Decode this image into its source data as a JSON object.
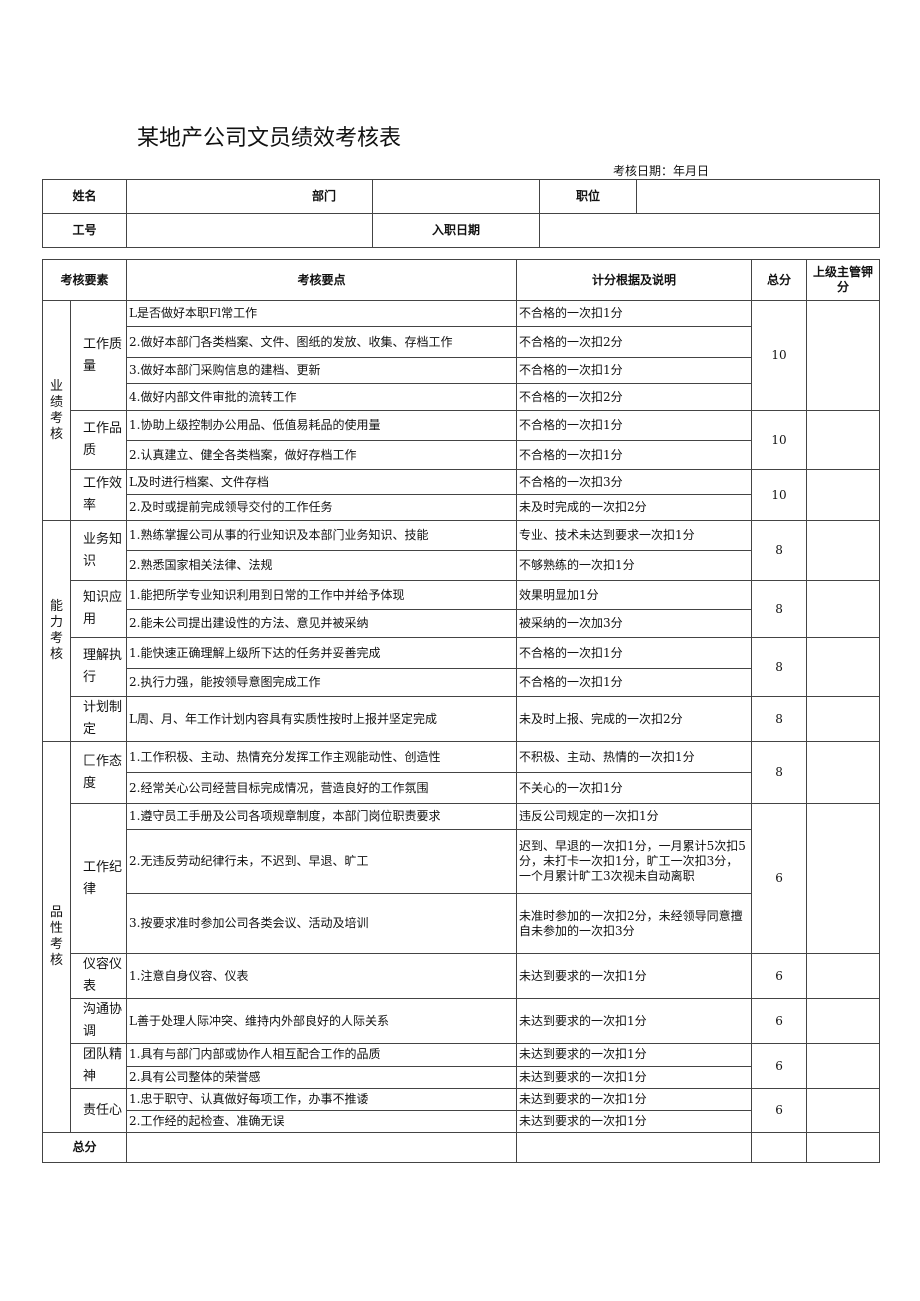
{
  "title": "某地产公司文员绩效考核表",
  "date_label": "考核日期：年月日",
  "info": {
    "name": "姓名",
    "dept": "部门",
    "position": "职位",
    "id": "工号",
    "join_date": "入职日期"
  },
  "header": [
    "考核要素",
    "考核要点",
    "计分根据及说明",
    "总分",
    "上级主管钾分"
  ],
  "total_label": "总分",
  "sections": [
    {
      "name": "业绩考核",
      "groups": [
        {
          "name": "工作质量",
          "score": "10",
          "items": [
            [
              "L是否做好本职Fl常工作",
              "不合格的一次扣1分"
            ],
            [
              "2.做好本部门各类档案、文件、图纸的发放、收集、存档工作",
              "不合格的一次扣2分"
            ],
            [
              "3.做好本部门采购信息的建档、更新",
              "不合格的一次扣1分"
            ],
            [
              "4.做好内部文件审批的流转工作",
              "不合格的一次扣2分"
            ]
          ]
        },
        {
          "name": "工作品质",
          "score": "10",
          "items": [
            [
              "1.协助上级控制办公用品、低值易耗品的使用量",
              "不合格的一次扣1分"
            ],
            [
              "2.认真建立、健全各类档案，做好存档工作",
              "不合格的一次扣1分"
            ]
          ]
        },
        {
          "name": "工作效率",
          "score": "10",
          "items": [
            [
              "L及时进行档案、文件存档",
              "不合格的一次扣3分"
            ],
            [
              "2.及时或提前完成领导交付的工作任务",
              "未及时完成的一次扣2分"
            ]
          ]
        }
      ]
    },
    {
      "name": "能力考核",
      "groups": [
        {
          "name": "业务知识",
          "score": "8",
          "items": [
            [
              "1.熟练掌握公司从事的行业知识及本部门业务知识、技能",
              "专业、技术未达到要求一次扣1分"
            ],
            [
              "2.熟悉国家相关法律、法规",
              "不够熟练的一次扣1分"
            ]
          ]
        },
        {
          "name": "知识应用",
          "score": "8",
          "items": [
            [
              "1.能把所学专业知识利用到日常的工作中并给予体现",
              "效果明显加1分"
            ],
            [
              "2.能未公司提出建设性的方法、意见并被采纳",
              "被采纳的一次加3分"
            ]
          ]
        },
        {
          "name": "理解执行",
          "score": "8",
          "items": [
            [
              "1.能快速正确理解上级所下达的任务并妥善完成",
              "不合格的一次扣1分"
            ],
            [
              "2.执行力强，能按领导意图完成工作",
              "不合格的一次扣1分"
            ]
          ]
        },
        {
          "name": "计划制定",
          "score": "8",
          "items": [
            [
              "L周、月、年工作计划内容具有实质性按时上报并坚定完成",
              "未及时上报、完成的一次扣2分"
            ]
          ]
        }
      ]
    },
    {
      "name": "品性考核",
      "groups": [
        {
          "name": "匚作态度",
          "score": "8",
          "items": [
            [
              "1.工作积极、主动、热情充分发挥工作主观能动性、创造性",
              "不积极、主动、热情的一次扣1分"
            ],
            [
              "2.经常关心公司经营目标完成情况，营造良好的工作氛围",
              "不关心的一次扣1分"
            ]
          ]
        },
        {
          "name": "工作纪律",
          "score": "6",
          "items": [
            [
              "1.遵守员工手册及公司各项规章制度，本部门岗位职责要求",
              "违反公司规定的一次扣1分"
            ],
            [
              "2.无违反劳动纪律行未，不迟到、早退、旷工",
              "迟到、早退的一次扣1分，一月累计5次扣5分，未打卡一次扣1分，旷工一次扣3分，一个月累计旷工3次视未自动离职"
            ],
            [
              "3.按要求准时参加公司各类会议、活动及培训",
              "未准时参加的一次扣2分，未经领导同意擅自未参加的一次扣3分"
            ]
          ]
        },
        {
          "name": "仪容仪表",
          "score": "6",
          "items": [
            [
              "1.注意自身仪容、仪表",
              "未达到要求的一次扣1分"
            ]
          ]
        },
        {
          "name": "沟通协调",
          "score": "6",
          "items": [
            [
              "L善于处理人际冲突、维持内外部良好的人际关系",
              "未达到要求的一次扣1分"
            ]
          ]
        },
        {
          "name": "团队精神",
          "score": "6",
          "items": [
            [
              "1.具有与部门内部或协作人相互配合工作的品质",
              "未达到要求的一次扣1分"
            ],
            [
              "2.具有公司整体的荣誉感",
              "未达到要求的一次扣1分"
            ]
          ]
        },
        {
          "name": "责任心",
          "score": "6",
          "items": [
            [
              "1.忠于职守、认真做好每项工作，办事不推诿",
              "未达到要求的一次扣1分"
            ],
            [
              "2.工作经的起检查、准确无误",
              "未达到要求的一次扣1分"
            ]
          ]
        }
      ]
    }
  ]
}
